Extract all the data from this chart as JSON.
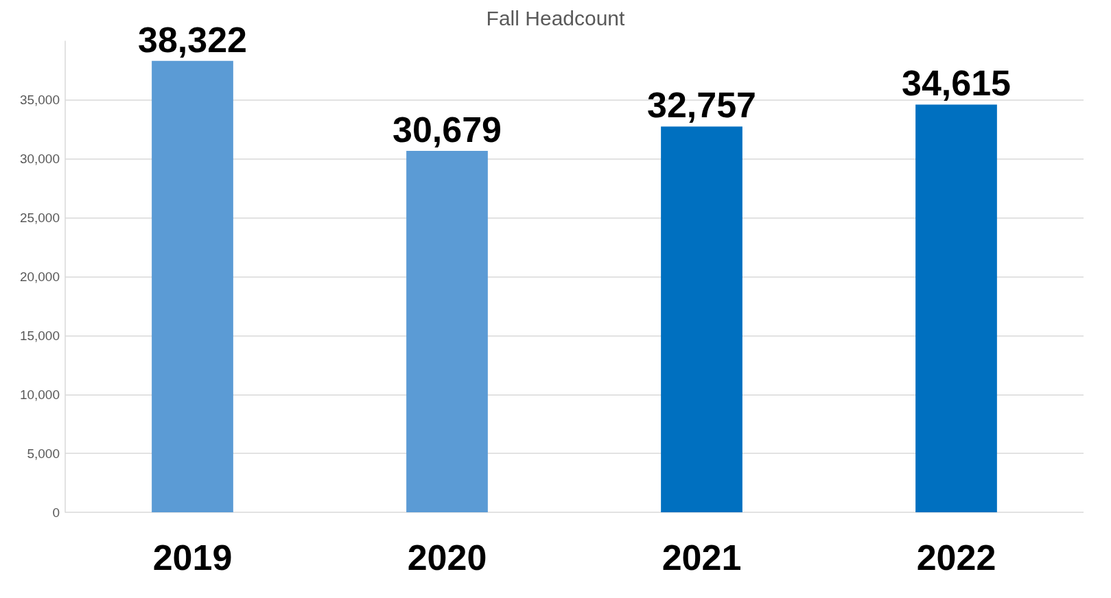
{
  "chart_data": {
    "type": "bar",
    "title": "Fall Headcount",
    "categories": [
      "2019",
      "2020",
      "2021",
      "2022"
    ],
    "values": [
      38322,
      30679,
      32757,
      34615
    ],
    "value_labels": [
      "38,322",
      "30,679",
      "32,757",
      "34,615"
    ],
    "colors": [
      "#5b9bd5",
      "#5b9bd5",
      "#0070c0",
      "#0070c0"
    ],
    "ylim": [
      0,
      40000
    ],
    "yticks": [
      0,
      {
        "value": 5000,
        "label": "5,000"
      },
      {
        "value": 10000,
        "label": "10,000"
      },
      {
        "value": 15000,
        "label": "15,000"
      },
      {
        "value": 20000,
        "label": "20,000"
      },
      {
        "value": 25000,
        "label": "25,000"
      },
      {
        "value": 30000,
        "label": "30,000"
      },
      {
        "value": 35000,
        "label": "35,000"
      }
    ],
    "grid": "y"
  }
}
